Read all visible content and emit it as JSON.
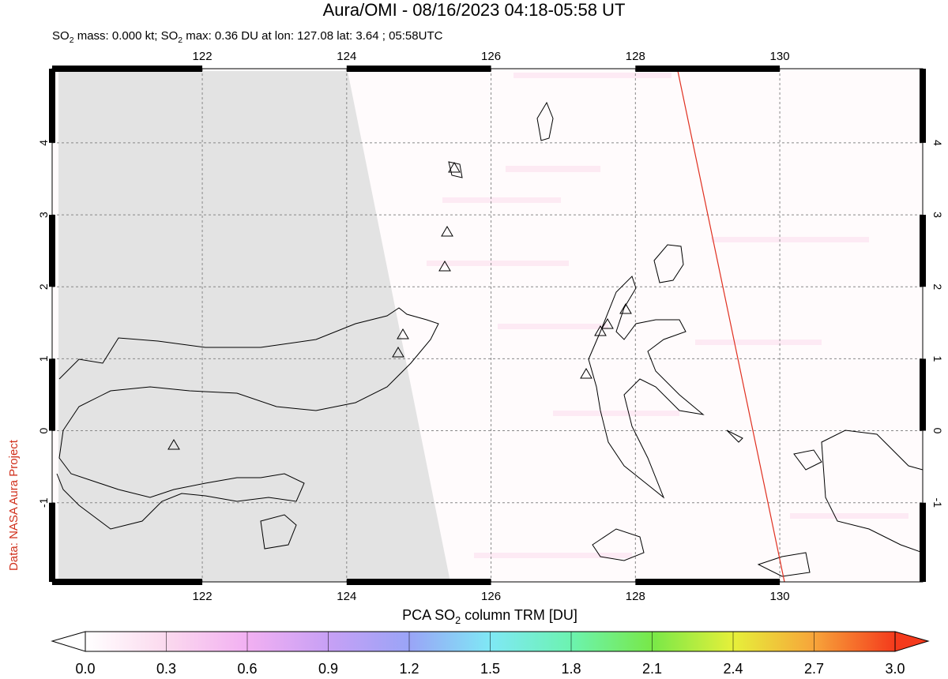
{
  "chart_data": {
    "type": "map",
    "title": "Aura/OMI - 08/16/2023 04:18-05:58 UT",
    "subtitle_parts": [
      "SO",
      "2",
      " mass: 0.000 kt; SO",
      "2",
      " max: 0.36 DU at lon: 127.08 lat: 3.64 ; 05:58UTC"
    ],
    "xlim": [
      119.92,
      131.98
    ],
    "ylim": [
      -2.1,
      5.03
    ],
    "xticks": [
      122,
      124,
      126,
      128,
      130
    ],
    "yticks": [
      -1,
      0,
      1,
      2,
      3,
      4
    ],
    "grid": true,
    "colorbar": {
      "label_parts": [
        "PCA SO",
        "2",
        " column TRM [DU]"
      ],
      "lim": [
        0,
        3
      ],
      "ticks": [
        {
          "value": 0,
          "label": "0.0"
        },
        0.3,
        0.6,
        0.9,
        1.2,
        1.5,
        1.8,
        2.1,
        2.4,
        2.7,
        {
          "value": 3,
          "label": "3.0"
        }
      ]
    },
    "credit": "Data: NASA Aura Project"
  }
}
